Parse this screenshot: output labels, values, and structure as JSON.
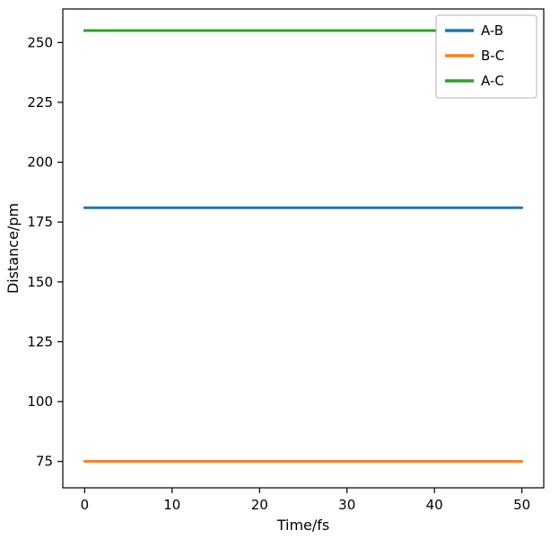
{
  "chart_data": {
    "type": "line",
    "title": "",
    "xlabel": "Time/fs",
    "ylabel": "Distance/pm",
    "x": [
      0,
      50
    ],
    "series": [
      {
        "name": "A-B",
        "values": [
          181,
          181
        ],
        "color": "#1f77b4"
      },
      {
        "name": "B-C",
        "values": [
          75,
          75
        ],
        "color": "#ff7f0e"
      },
      {
        "name": "A-C",
        "values": [
          255,
          255
        ],
        "color": "#2ca02c"
      }
    ],
    "xlim": [
      -2.5,
      52.5
    ],
    "ylim": [
      64,
      264
    ],
    "xticks": [
      0,
      10,
      20,
      30,
      40,
      50
    ],
    "yticks": [
      75,
      100,
      125,
      150,
      175,
      200,
      225,
      250
    ],
    "grid": false,
    "legend_position": "upper right",
    "legend_labels": [
      "A-B",
      "B-C",
      "A-C"
    ],
    "spine_color": "#000000",
    "background_color": "#ffffff",
    "legend_border_color": "#b3b3b3"
  }
}
